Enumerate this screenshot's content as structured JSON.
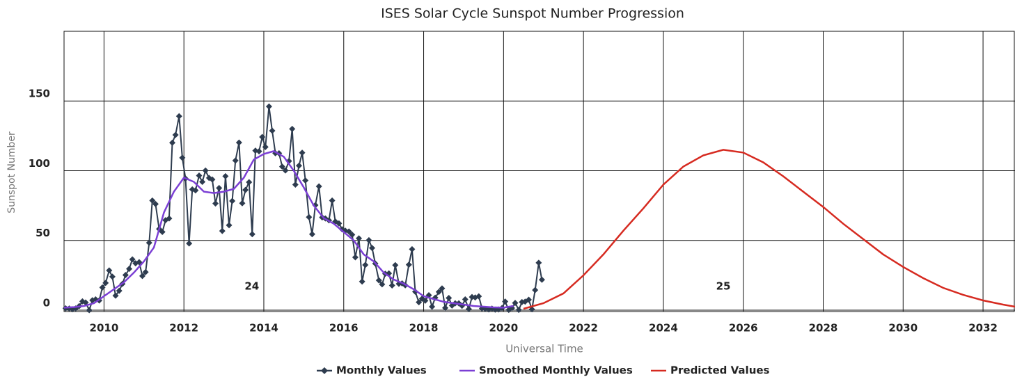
{
  "chart_data": {
    "type": "line",
    "title": "ISES Solar Cycle Sunspot Number Progression",
    "x_label": "Universal Time",
    "y_label": "Sunspot Number",
    "xlim": [
      2009,
      2032.8
    ],
    "ylim": [
      -1,
      200
    ],
    "xticks": [
      2010,
      2012,
      2014,
      2016,
      2018,
      2020,
      2022,
      2024,
      2026,
      2028,
      2030,
      2032
    ],
    "yticks": [
      0,
      50,
      100,
      150
    ],
    "grid": true,
    "legend": "bottom",
    "annotations": [
      {
        "text": "24",
        "x": 2013.7,
        "y": 17
      },
      {
        "text": "25",
        "x": 2025.5,
        "y": 17
      }
    ],
    "series": [
      {
        "name": "Monthly Values",
        "color": "#2e3c4f",
        "marker": "diamond",
        "x": [
          2009.04,
          2009.13,
          2009.21,
          2009.29,
          2009.38,
          2009.46,
          2009.54,
          2009.63,
          2009.71,
          2009.79,
          2009.88,
          2009.96,
          2010.04,
          2010.13,
          2010.21,
          2010.29,
          2010.38,
          2010.46,
          2010.54,
          2010.63,
          2010.71,
          2010.79,
          2010.88,
          2010.96,
          2011.04,
          2011.13,
          2011.21,
          2011.29,
          2011.38,
          2011.46,
          2011.54,
          2011.63,
          2011.71,
          2011.79,
          2011.88,
          2011.96,
          2012.04,
          2012.13,
          2012.21,
          2012.29,
          2012.38,
          2012.46,
          2012.54,
          2012.63,
          2012.71,
          2012.79,
          2012.88,
          2012.96,
          2013.04,
          2013.13,
          2013.21,
          2013.29,
          2013.38,
          2013.46,
          2013.54,
          2013.63,
          2013.71,
          2013.79,
          2013.88,
          2013.96,
          2014.04,
          2014.13,
          2014.21,
          2014.29,
          2014.38,
          2014.46,
          2014.54,
          2014.63,
          2014.71,
          2014.79,
          2014.88,
          2014.96,
          2015.04,
          2015.13,
          2015.21,
          2015.29,
          2015.38,
          2015.46,
          2015.54,
          2015.63,
          2015.71,
          2015.79,
          2015.88,
          2015.96,
          2016.04,
          2016.13,
          2016.21,
          2016.29,
          2016.38,
          2016.46,
          2016.54,
          2016.63,
          2016.71,
          2016.79,
          2016.88,
          2016.96,
          2017.04,
          2017.13,
          2017.21,
          2017.29,
          2017.38,
          2017.46,
          2017.54,
          2017.63,
          2017.71,
          2017.79,
          2017.88,
          2017.96,
          2018.04,
          2018.13,
          2018.21,
          2018.29,
          2018.38,
          2018.46,
          2018.54,
          2018.63,
          2018.71,
          2018.79,
          2018.88,
          2018.96,
          2019.04,
          2019.13,
          2019.21,
          2019.29,
          2019.38,
          2019.46,
          2019.54,
          2019.63,
          2019.71,
          2019.79,
          2019.88,
          2019.96,
          2020.04,
          2020.13,
          2020.21,
          2020.29,
          2020.38,
          2020.46,
          2020.54,
          2020.63,
          2020.71,
          2020.79,
          2020.88,
          2020.96
        ],
        "values": [
          1.3,
          1.2,
          0.6,
          1.2,
          2.9,
          6.3,
          5.5,
          0,
          7.1,
          7.7,
          6.9,
          16.3,
          19.5,
          28.5,
          24,
          10.4,
          13.9,
          18.8,
          25.2,
          29.6,
          36.4,
          33.6,
          34.4,
          24.5,
          27.3,
          48.3,
          78.6,
          76.1,
          58.2,
          56.1,
          64.5,
          65.8,
          120.1,
          125.7,
          139.1,
          109.3,
          94.4,
          47.8,
          86.6,
          85.9,
          96.5,
          92,
          100.1,
          94.8,
          93.7,
          76.5,
          87.6,
          56.8,
          96.1,
          60.9,
          78.3,
          107.3,
          120.2,
          76.7,
          86.2,
          91.8,
          54.5,
          114.4,
          113.9,
          124.2,
          117,
          146.1,
          128.7,
          112.5,
          112.5,
          102.9,
          100.2,
          106.9,
          130,
          90,
          103.6,
          112.9,
          93,
          66.7,
          54.5,
          75.3,
          88.8,
          66.5,
          65.8,
          64.4,
          78.6,
          63.6,
          62.2,
          58,
          57,
          56.4,
          54.1,
          37.9,
          51.5,
          20.5,
          32.4,
          50.2,
          44.6,
          33.4,
          21.4,
          18.5,
          26.1,
          26.4,
          17.7,
          32.3,
          18.9,
          19.2,
          17.8,
          32.6,
          43.7,
          13.2,
          5.7,
          8.2,
          6.8,
          10.7,
          2.5,
          8.9,
          13.1,
          15.6,
          1.6,
          8.7,
          3.3,
          4.9,
          4.9,
          3.1,
          7.7,
          0.8,
          9.4,
          9.1,
          9.9,
          1.2,
          0.9,
          0.5,
          1.1,
          0.4,
          0.5,
          1.5,
          6.2,
          0.2,
          1.5,
          5.2,
          0.2,
          5.8,
          6.1,
          7.5,
          0.6,
          14.4,
          34,
          21.8
        ]
      },
      {
        "name": "Smoothed Monthly Values",
        "color": "#7b3fd4",
        "x": [
          2009,
          2009.25,
          2009.5,
          2009.75,
          2010,
          2010.25,
          2010.5,
          2010.75,
          2011,
          2011.25,
          2011.5,
          2011.75,
          2012,
          2012.25,
          2012.5,
          2012.75,
          2013,
          2013.25,
          2013.5,
          2013.75,
          2014,
          2014.25,
          2014.5,
          2014.75,
          2015,
          2015.25,
          2015.5,
          2015.75,
          2016,
          2016.25,
          2016.5,
          2016.75,
          2017,
          2017.25,
          2017.5,
          2017.75,
          2018,
          2018.25,
          2018.5,
          2018.75,
          2019,
          2019.25,
          2019.5,
          2019.75,
          2020,
          2020.25
        ],
        "values": [
          1.8,
          2.2,
          3,
          5,
          10,
          15,
          20,
          27,
          35,
          45,
          70,
          85,
          95,
          92,
          85,
          84,
          85,
          87,
          95,
          108,
          112,
          114,
          110,
          100,
          88,
          75,
          66,
          62,
          56,
          50,
          40,
          35,
          27,
          22,
          19,
          15,
          10,
          8,
          6,
          5,
          4,
          3,
          2.5,
          2,
          1.8,
          3
        ]
      },
      {
        "name": "Predicted Values",
        "color": "#d62a20",
        "x": [
          2020.5,
          2021,
          2021.5,
          2022,
          2022.5,
          2023,
          2023.5,
          2024,
          2024.5,
          2025,
          2025.5,
          2026,
          2026.5,
          2027,
          2027.5,
          2028,
          2028.5,
          2029,
          2029.5,
          2030,
          2030.5,
          2031,
          2031.5,
          2032,
          2032.5,
          2032.8
        ],
        "values": [
          1,
          5,
          12,
          25,
          40,
          57,
          73,
          90,
          103,
          111,
          115,
          113,
          106,
          96,
          85,
          74,
          62,
          51,
          40,
          31,
          23,
          16,
          11,
          7,
          4,
          2.5
        ]
      }
    ]
  }
}
